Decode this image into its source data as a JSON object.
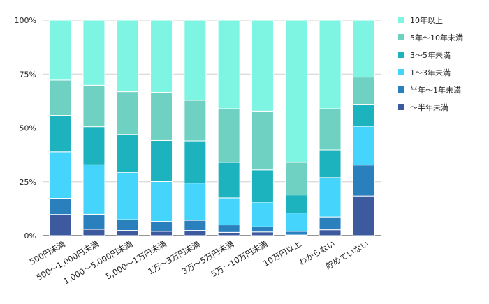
{
  "chart_data": {
    "type": "bar",
    "stacked": "percent",
    "categories": [
      "500円未満",
      "500～1,000円未満",
      "1,000～5,000円未満",
      "5,000～1万円未満",
      "1万～3万円未満",
      "3万～5万円未満",
      "5万～10万円未満",
      "10万円以上",
      "わからない",
      "貯めていない"
    ],
    "series": [
      {
        "name": "～半年未満",
        "color": "#3d5a9e",
        "values": [
          9.8,
          2.9,
          2.4,
          2.0,
          2.4,
          1.5,
          1.7,
          0.3,
          2.7,
          18.4
        ]
      },
      {
        "name": "半年～1年未満",
        "color": "#2a7fbd",
        "values": [
          7.5,
          7.0,
          5.0,
          4.6,
          4.7,
          3.5,
          2.4,
          1.7,
          6.0,
          14.4
        ]
      },
      {
        "name": "1～3年未満",
        "color": "#45d4fc",
        "values": [
          21.6,
          23.0,
          22.0,
          18.5,
          17.3,
          12.5,
          11.5,
          8.5,
          18.2,
          18.0
        ]
      },
      {
        "name": "3～5年未満",
        "color": "#1db3be",
        "values": [
          16.9,
          17.7,
          17.6,
          19.1,
          19.6,
          16.5,
          14.9,
          8.4,
          12.9,
          10.2
        ]
      },
      {
        "name": "5年～10年未満",
        "color": "#6fd1c2",
        "values": [
          16.4,
          19.2,
          19.8,
          22.3,
          18.8,
          24.9,
          27.3,
          15.1,
          19.1,
          12.6
        ]
      },
      {
        "name": "10年以上",
        "color": "#7df5e2",
        "values": [
          27.8,
          30.2,
          33.2,
          33.5,
          37.2,
          41.1,
          42.2,
          66.0,
          41.1,
          26.4
        ]
      }
    ],
    "yticks": [
      "0%",
      "25%",
      "50%",
      "75%",
      "100%"
    ],
    "ylim": [
      0,
      100
    ],
    "grid": true,
    "legend": "right"
  }
}
